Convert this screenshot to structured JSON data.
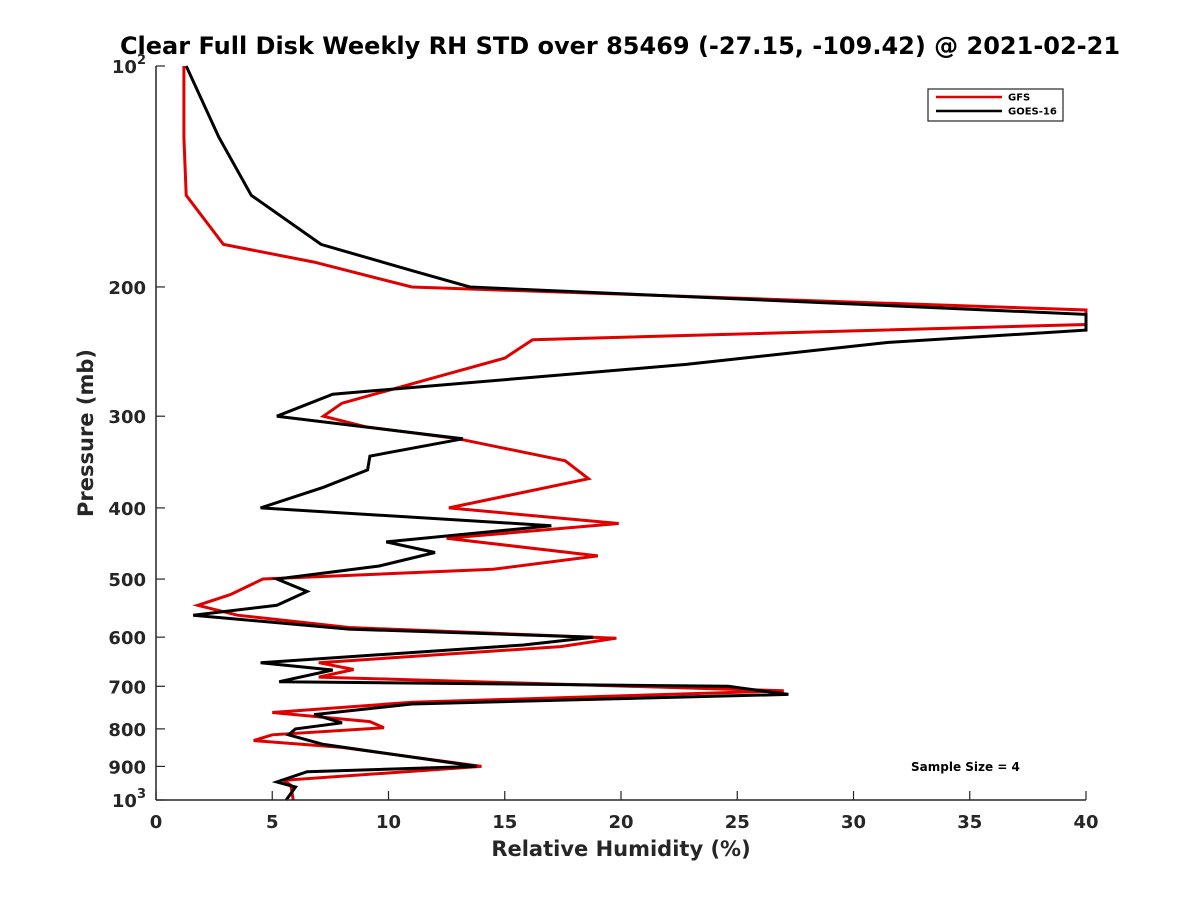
{
  "chart_data": {
    "type": "line",
    "title": "Clear Full Disk Weekly RH STD over 85469 (-27.15, -109.42) @ 2021-02-21",
    "xlabel": "Relative Humidity (%)",
    "ylabel": "Pressure (mb)",
    "xlim": [
      0,
      40
    ],
    "ylim": [
      100,
      1000
    ],
    "y_scale": "log",
    "y_reversed": true,
    "grid": false,
    "legend_position": "top-right",
    "x_ticks": [
      "0",
      "5",
      "10",
      "15",
      "20",
      "25",
      "30",
      "35",
      "40"
    ],
    "y_ticks": [
      {
        "value": 100,
        "base": "10",
        "exp": "2"
      },
      {
        "value": 200,
        "label": "200"
      },
      {
        "value": 300,
        "label": "300"
      },
      {
        "value": 400,
        "label": "400"
      },
      {
        "value": 500,
        "label": "500"
      },
      {
        "value": 600,
        "label": "600"
      },
      {
        "value": 700,
        "label": "700"
      },
      {
        "value": 800,
        "label": "800"
      },
      {
        "value": 900,
        "label": "900"
      },
      {
        "value": 1000,
        "base": "10",
        "exp": "3"
      }
    ],
    "annotation": "Sample Size = 4",
    "series": [
      {
        "name": "GFS",
        "color": "#e00000",
        "points": [
          [
            1.2,
            100
          ],
          [
            1.2,
            125
          ],
          [
            1.3,
            150
          ],
          [
            2.9,
            175
          ],
          [
            6.8,
            185
          ],
          [
            11.0,
            200
          ],
          [
            40.0,
            215
          ],
          [
            40.0,
            225
          ],
          [
            16.2,
            236
          ],
          [
            15.0,
            250
          ],
          [
            8.0,
            288
          ],
          [
            7.2,
            300
          ],
          [
            9.0,
            310
          ],
          [
            13.0,
            322
          ],
          [
            17.6,
            345
          ],
          [
            18.6,
            365
          ],
          [
            12.6,
            400
          ],
          [
            19.9,
            420
          ],
          [
            12.5,
            440
          ],
          [
            19.0,
            465
          ],
          [
            14.5,
            485
          ],
          [
            4.6,
            500
          ],
          [
            3.2,
            525
          ],
          [
            1.8,
            543
          ],
          [
            3.5,
            560
          ],
          [
            8.3,
            582
          ],
          [
            19.8,
            602
          ],
          [
            17.4,
            618
          ],
          [
            7.0,
            650
          ],
          [
            8.5,
            664
          ],
          [
            7.0,
            680
          ],
          [
            27.0,
            710
          ],
          [
            11.0,
            736
          ],
          [
            5.0,
            760
          ],
          [
            9.2,
            782
          ],
          [
            9.8,
            797
          ],
          [
            5.0,
            815
          ],
          [
            4.2,
            830
          ],
          [
            8.0,
            848
          ],
          [
            14.0,
            900
          ],
          [
            5.5,
            940
          ],
          [
            5.8,
            955
          ],
          [
            5.9,
            1000
          ]
        ]
      },
      {
        "name": "GOES-16",
        "color": "#000000",
        "points": [
          [
            1.3,
            100
          ],
          [
            2.7,
            125
          ],
          [
            4.1,
            150
          ],
          [
            7.1,
            175
          ],
          [
            11.0,
            190
          ],
          [
            13.5,
            200
          ],
          [
            40.0,
            218
          ],
          [
            40.0,
            229
          ],
          [
            31.5,
            238
          ],
          [
            22.8,
            255
          ],
          [
            7.6,
            280
          ],
          [
            5.2,
            300
          ],
          [
            13.2,
            322
          ],
          [
            9.2,
            340
          ],
          [
            9.1,
            355
          ],
          [
            7.2,
            375
          ],
          [
            4.5,
            400
          ],
          [
            17.0,
            423
          ],
          [
            9.9,
            445
          ],
          [
            12.0,
            460
          ],
          [
            9.6,
            480
          ],
          [
            5.2,
            500
          ],
          [
            6.5,
            520
          ],
          [
            5.2,
            543
          ],
          [
            1.6,
            560
          ],
          [
            8.3,
            585
          ],
          [
            18.8,
            600
          ],
          [
            15.8,
            615
          ],
          [
            4.5,
            650
          ],
          [
            7.6,
            665
          ],
          [
            5.3,
            690
          ],
          [
            24.6,
            700
          ],
          [
            27.2,
            718
          ],
          [
            11.0,
            740
          ],
          [
            6.8,
            765
          ],
          [
            8.0,
            785
          ],
          [
            6.0,
            800
          ],
          [
            5.7,
            815
          ],
          [
            7.2,
            840
          ],
          [
            13.8,
            900
          ],
          [
            6.5,
            915
          ],
          [
            5.2,
            945
          ],
          [
            6.0,
            960
          ],
          [
            5.6,
            1000
          ]
        ]
      }
    ]
  }
}
